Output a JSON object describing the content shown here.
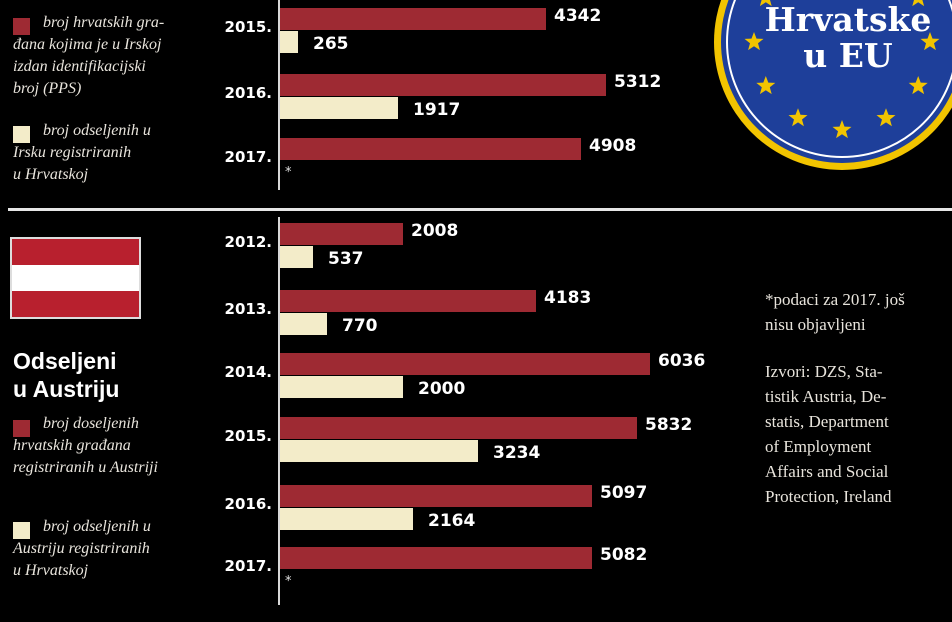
{
  "badge": {
    "text": "Hrvatske\nu EU",
    "bg": "#1e3f9a",
    "ring": "#f2c400",
    "star": "#f2c400"
  },
  "ireland": {
    "legend_red": "broj hrvatskih gra-\nđana kojima je u Irskoj\nizdan identifikacijski\nbroj (PPS)",
    "legend_cream": "broj odseljenih u\nIrsku registriranih\nu Hrvatskoj"
  },
  "austria": {
    "title": "Odseljeni\nu Austriju",
    "legend_red": "broj doseljenih\nhrvatskih građana\nregistriranih u Austriji",
    "legend_cream": "broj odseljenih u\nAustriju registriranih\nu Hrvatskoj",
    "flag_colors": [
      "#b8202e",
      "#ffffff",
      "#b8202e"
    ]
  },
  "notes": {
    "footnote": "*podaci za 2017. još\nnisu objavljeni",
    "sources": "Izvori: DZS, Sta-\ntistik Austria, De-\nstatis, Department\nof Employment\nAffairs and Social\nProtection, Ireland"
  },
  "colors": {
    "red": "#9e2a33",
    "cream": "#f3ecc9"
  },
  "chart_data": [
    {
      "type": "bar",
      "orientation": "horizontal",
      "categories": [
        "2015.",
        "2016.",
        "2017."
      ],
      "series": [
        {
          "name": "broj hrvatskih građana kojima je u Irskoj izdan identifikacijski broj (PPS)",
          "values": [
            4342,
            5312,
            4908
          ],
          "labels": [
            "4342",
            "5312",
            "4908"
          ]
        },
        {
          "name": "broj odseljenih u Irsku registriranih u Hrvatskoj",
          "values": [
            265,
            1917,
            null
          ],
          "labels": [
            "265",
            "1917",
            "*"
          ]
        }
      ],
      "xlim": [
        0,
        6300
      ]
    },
    {
      "type": "bar",
      "orientation": "horizontal",
      "categories": [
        "2012.",
        "2013.",
        "2014.",
        "2015.",
        "2016.",
        "2017."
      ],
      "series": [
        {
          "name": "broj doseljenih hrvatskih građana registriranih u Austriji",
          "values": [
            2008,
            4183,
            6036,
            5832,
            5097,
            5082
          ],
          "labels": [
            "2008",
            "4183",
            "6036",
            "5832",
            "5097",
            "5082"
          ]
        },
        {
          "name": "broj odseljenih u Austriju registriranih u Hrvatskoj",
          "values": [
            537,
            770,
            2000,
            3234,
            2164,
            null
          ],
          "labels": [
            "537",
            "770",
            "2000",
            "3234",
            "2164",
            "*"
          ]
        }
      ],
      "xlim": [
        0,
        6300
      ]
    }
  ]
}
